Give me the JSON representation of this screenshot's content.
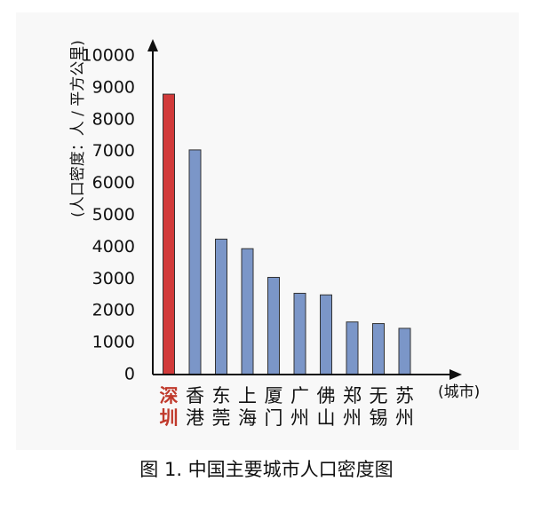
{
  "caption": "图 1. 中国主要城市人口密度图",
  "chart_data": {
    "type": "bar",
    "title": "",
    "xlabel": "(城市)",
    "ylabel": "(人口密度：人 / 平方公里)",
    "categories": [
      "深圳",
      "香港",
      "东莞",
      "上海",
      "厦门",
      "广州",
      "佛山",
      "郑州",
      "无锡",
      "苏州"
    ],
    "values": [
      8800,
      7050,
      4250,
      3950,
      3050,
      2550,
      2500,
      1650,
      1600,
      1450
    ],
    "ylim": [
      0,
      10000
    ],
    "yticks": [
      0,
      1000,
      2000,
      3000,
      4000,
      5000,
      6000,
      7000,
      8000,
      9000,
      10000
    ],
    "grid": false,
    "legend": "none",
    "colors": {
      "bar": "#7b96c8",
      "highlight_bar": "#d13a3a",
      "highlight_label": "#c0392b",
      "axis": "#111111",
      "text": "#111111"
    },
    "highlight_index": 0
  }
}
